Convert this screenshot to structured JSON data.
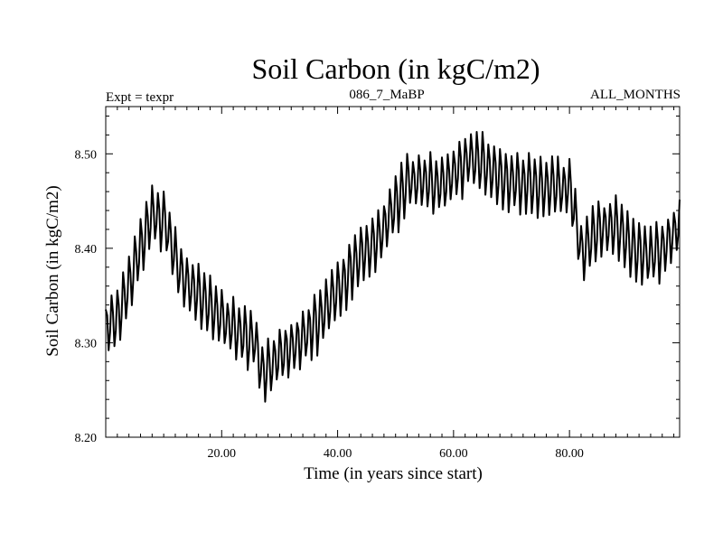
{
  "chart_data": {
    "type": "line",
    "title": "Soil Carbon (in kgC/m2)",
    "subtitle_left": "Expt = texpr",
    "subtitle_center": "086_7_MaBP",
    "subtitle_right": "ALL_MONTHS",
    "xlabel": "Time (in years since start)",
    "ylabel": "Soil Carbon (in kgC/m2)",
    "xlim": [
      0,
      99
    ],
    "ylim": [
      8.2,
      8.55
    ],
    "xticks": [
      20,
      40,
      60,
      80
    ],
    "xtick_labels": [
      "20.00",
      "40.00",
      "60.00",
      "80.00"
    ],
    "yticks": [
      8.2,
      8.3,
      8.4,
      8.5
    ],
    "ytick_labels": [
      "8.20",
      "8.30",
      "8.40",
      "8.50"
    ],
    "grid": false,
    "series": [
      {
        "name": "Soil Carbon",
        "color": "#000000",
        "seasonal_cycle_amplitude": 0.03,
        "points_per_year": 4,
        "annual_trend": {
          "x": [
            0,
            2,
            5,
            8,
            10,
            13,
            17,
            20,
            23,
            26,
            27,
            29,
            33,
            37,
            40,
            43,
            47,
            50,
            52,
            55,
            58,
            60,
            63,
            65,
            68,
            72,
            75,
            78,
            80,
            82,
            85,
            88,
            91,
            94,
            96,
            99
          ],
          "y": [
            8.315,
            8.325,
            8.38,
            8.435,
            8.43,
            8.37,
            8.345,
            8.325,
            8.31,
            8.3,
            8.265,
            8.28,
            8.3,
            8.325,
            8.355,
            8.385,
            8.41,
            8.445,
            8.47,
            8.47,
            8.465,
            8.48,
            8.495,
            8.49,
            8.475,
            8.47,
            8.465,
            8.465,
            8.465,
            8.395,
            8.42,
            8.425,
            8.4,
            8.39,
            8.4,
            8.425
          ]
        }
      }
    ]
  }
}
